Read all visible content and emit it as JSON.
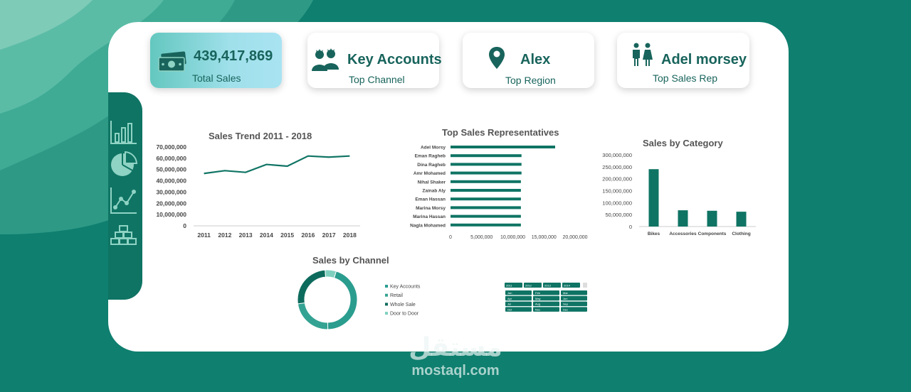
{
  "kpis": [
    {
      "value": "439,417,869",
      "label": "Total Sales",
      "icon": "money-icon"
    },
    {
      "value": "Key Accounts",
      "label": "Top Channel",
      "icon": "people-group-icon"
    },
    {
      "value": "Alex",
      "label": "Top Region",
      "icon": "location-pin-icon"
    },
    {
      "value": "Adel morsey",
      "label": "Top Sales Rep",
      "icon": "couple-icon"
    }
  ],
  "sidebar": [
    "bar-chart-icon",
    "pie-chart-icon",
    "line-chart-icon",
    "stack-icon"
  ],
  "colors": {
    "brand": "#0f7f6f",
    "series": "#0f7464",
    "kpi_text": "#18645c"
  },
  "chart_data": [
    {
      "type": "line",
      "title": "Sales Trend 2011 - 2018",
      "x": [
        "2011",
        "2012",
        "2013",
        "2014",
        "2015",
        "2016",
        "2017",
        "2018"
      ],
      "values": [
        46500000,
        49000000,
        47500000,
        54500000,
        53000000,
        62000000,
        61000000,
        62000000
      ],
      "ylim": [
        0,
        70000000
      ],
      "yticks": [
        "70,000,000",
        "60,000,000",
        "50,000,000",
        "40,000,000",
        "30,000,000",
        "20,000,000",
        "10,000,000",
        "0"
      ]
    },
    {
      "type": "bar",
      "orientation": "horizontal",
      "title": "Top Sales Representatives",
      "categories": [
        "Adel Morsy",
        "Eman Ragheb",
        "Dina Ragheb",
        "Amr Mohamed",
        "Nihal Shaker",
        "Zainab Aly",
        "Eman Hassan",
        "Marina Morsy",
        "Marina Hassan",
        "Nagla Mohamed"
      ],
      "values": [
        16800000,
        11400000,
        11400000,
        11400000,
        11300000,
        11300000,
        11300000,
        11300000,
        11300000,
        11300000
      ],
      "xlim": [
        0,
        20000000
      ],
      "xticks": [
        "0",
        "5,000,000",
        "10,000,000",
        "15,000,000",
        "20,000,000"
      ]
    },
    {
      "type": "bar",
      "title": "Sales by Category",
      "categories": [
        "Bikes",
        "Accessories",
        "Components",
        "Clothing"
      ],
      "values": [
        240000000,
        68000000,
        66000000,
        62000000
      ],
      "ylim": [
        0,
        300000000
      ],
      "yticks": [
        "300,000,000",
        "250,000,000",
        "200,000,000",
        "150,000,000",
        "100,000,000",
        "50,000,000",
        "0"
      ]
    },
    {
      "type": "pie",
      "donut": true,
      "title": "Sales by Channel",
      "categories": [
        "Key Accounts",
        "Retail",
        "Whole Sale",
        "Door to Door"
      ],
      "values": [
        45,
        23,
        26,
        6
      ],
      "colors": [
        "#2a9d8f",
        "#34a393",
        "#0d6b5d",
        "#7fcfbf"
      ]
    }
  ],
  "slicer": {
    "years": [
      "2011",
      "2012",
      "2013",
      "2014"
    ],
    "months": [
      "Jan",
      "Feb",
      "Mar",
      "Apr",
      "May",
      "Jun",
      "Jul",
      "Aug",
      "Sep",
      "Oct",
      "Nov",
      "Dec"
    ]
  },
  "watermark": {
    "arabic": "مستقل",
    "domain": "mostaql.com"
  }
}
